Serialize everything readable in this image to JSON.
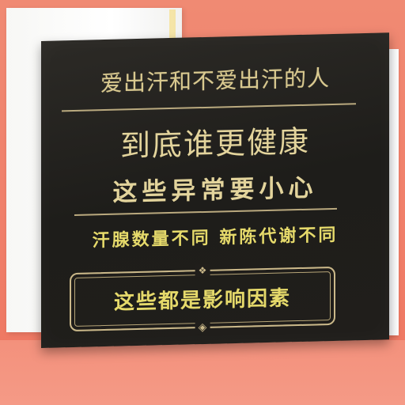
{
  "sign": {
    "line1": "爱出汗和不爱出汗的人",
    "line2": "到底谁更健康",
    "line3": "这些异常要小心",
    "line4": "汗腺数量不同  新陈代谢不同",
    "framed_line": "这些都是影响因素"
  },
  "icons": {
    "frame_ornament": "diamond-ornament-icon"
  },
  "colors": {
    "background": "#f08a73",
    "board": "#201e1b",
    "text": "#d9c98f",
    "accent_text": "#e6da6b"
  }
}
